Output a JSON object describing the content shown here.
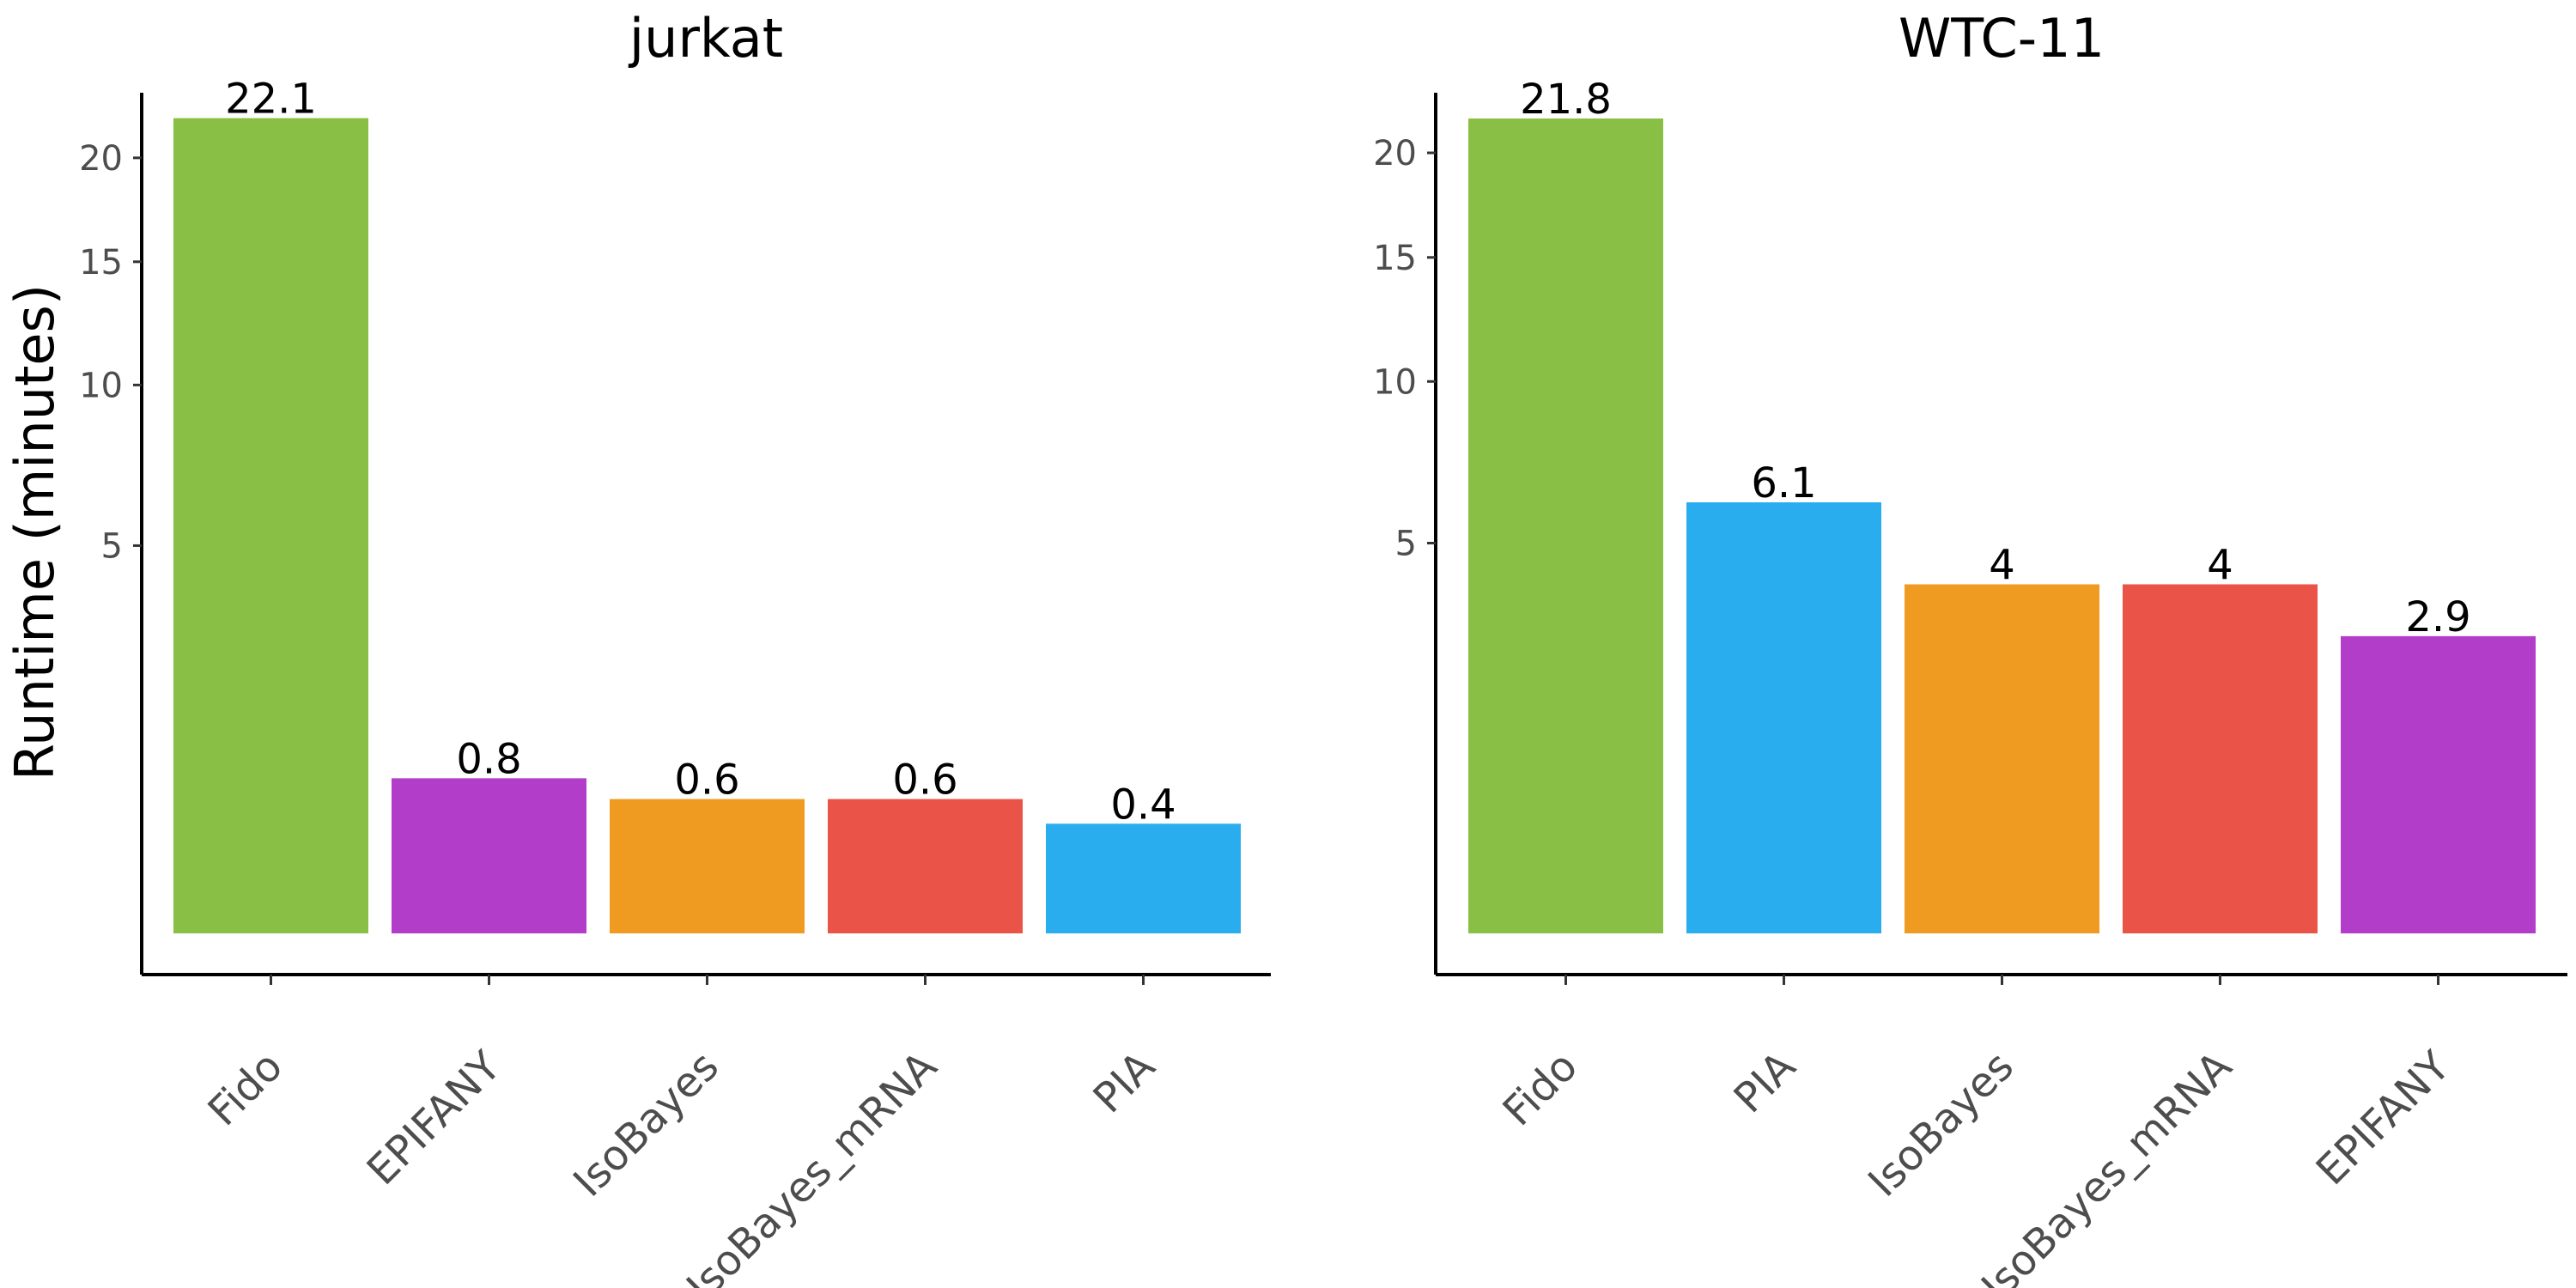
{
  "chart_data": [
    {
      "type": "bar",
      "title": "jurkat",
      "ylabel": "Runtime (minutes)",
      "yscale": "sqrt",
      "ylim": [
        0,
        23.5
      ],
      "yticks": [
        5,
        10,
        15,
        20
      ],
      "categories": [
        "Fido",
        "EPIFANY",
        "IsoBayes",
        "IsoBayes_mRNA",
        "PIA"
      ],
      "values": [
        22.1,
        0.8,
        0.6,
        0.6,
        0.4
      ],
      "labels": [
        "22.1",
        "0.8",
        "0.6",
        "0.6",
        "0.4"
      ],
      "colors": [
        "#8abf45",
        "#b23dc8",
        "#ef9b21",
        "#ea5448",
        "#2aadee"
      ],
      "grid": false
    },
    {
      "type": "bar",
      "title": "WTC-11",
      "ylabel": "",
      "yscale": "sqrt",
      "ylim": [
        0,
        23.2
      ],
      "yticks": [
        5,
        10,
        15,
        20
      ],
      "categories": [
        "Fido",
        "PIA",
        "IsoBayes",
        "IsoBayes_mRNA",
        "EPIFANY"
      ],
      "values": [
        21.8,
        6.1,
        4,
        4,
        2.9
      ],
      "labels": [
        "21.8",
        "6.1",
        "4",
        "4",
        "2.9"
      ],
      "colors": [
        "#8abf45",
        "#2aadee",
        "#ef9b21",
        "#ea5448",
        "#b23dc8"
      ],
      "grid": false
    }
  ]
}
